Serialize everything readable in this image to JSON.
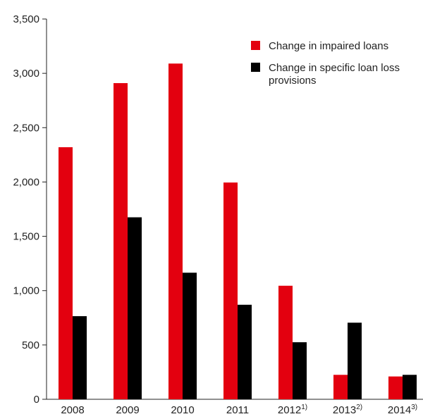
{
  "chart_data": {
    "type": "bar",
    "categories": [
      "2008",
      "2009",
      "2010",
      "2011",
      "2012",
      "2013",
      "2014"
    ],
    "category_footnotes": [
      "",
      "",
      "",
      "",
      "1)",
      "2)",
      "3)"
    ],
    "series": [
      {
        "name": "Change in impaired loans",
        "color": "#e3000f",
        "values": [
          2320,
          2910,
          3090,
          1995,
          1045,
          225,
          210
        ]
      },
      {
        "name": "Change in specific loan loss provisions",
        "color": "#000000",
        "values": [
          765,
          1675,
          1165,
          870,
          525,
          705,
          225
        ]
      }
    ],
    "yticks": [
      "0",
      "500",
      "1,000",
      "1,500",
      "2,000",
      "2,500",
      "3,000",
      "3,500"
    ],
    "ytick_values": [
      0,
      500,
      1000,
      1500,
      2000,
      2500,
      3000,
      3500
    ],
    "ylim": [
      0,
      3500
    ],
    "grid": false,
    "legend": {
      "position": "top-right",
      "lines": [
        [
          "Change in impaired loans"
        ],
        [
          "Change in specific loan loss",
          "provisions"
        ]
      ]
    }
  }
}
